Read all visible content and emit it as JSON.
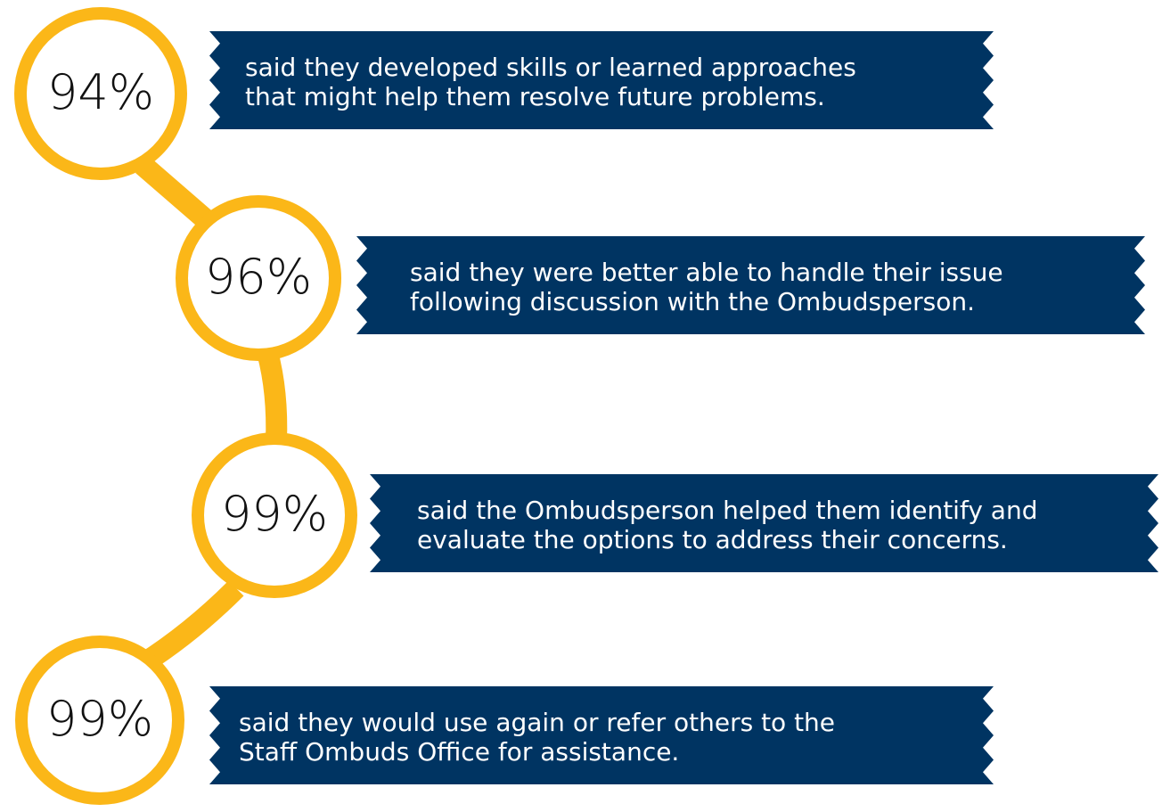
{
  "items": [
    {
      "percent": "94%",
      "lines": [
        "said they developed skills or learned approaches",
        "that might help them resolve future problems."
      ]
    },
    {
      "percent": "96%",
      "lines": [
        "said they were better able to handle their issue",
        "following discussion with the Ombudsperson."
      ]
    },
    {
      "percent": "99%",
      "lines": [
        "said the Ombudsperson helped them identify and",
        "evaluate the options to address their concerns."
      ]
    },
    {
      "percent": "99%",
      "lines": [
        "said they would use again or refer others to the",
        "Staff Ombuds Office for assistance."
      ]
    }
  ]
}
